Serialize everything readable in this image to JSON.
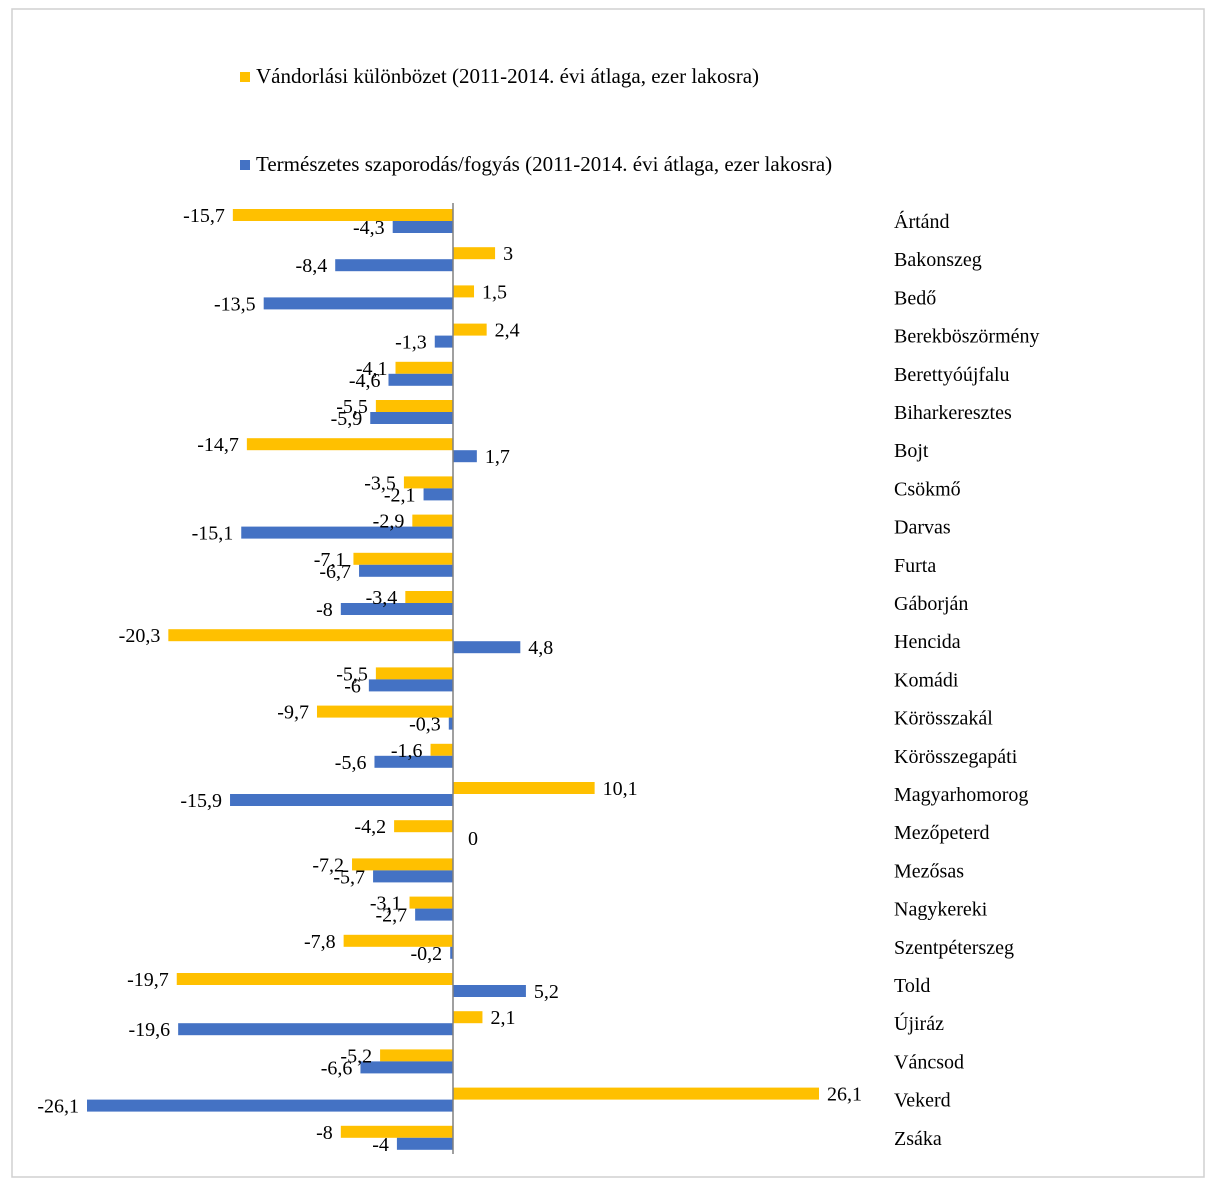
{
  "chart_data": {
    "type": "bar",
    "orientation": "horizontal",
    "title": "",
    "xlabel": "",
    "ylabel": "",
    "xlim": [
      -26.1,
      26.1
    ],
    "grid": false,
    "legend_position": "top",
    "categories": [
      "Ártánd",
      "Bakonszeg",
      "Bedő",
      "Berekböszörmény",
      "Berettyóújfalu",
      "Biharkeresztes",
      "Bojt",
      "Csökmő",
      "Darvas",
      "Furta",
      "Gáborján",
      "Hencida",
      "Komádi",
      "Körösszakál",
      "Körösszegapáti",
      "Magyarhomorog",
      "Mezőpeterd",
      "Mezősas",
      "Nagykereki",
      "Szentpéterszeg",
      "Told",
      "Újiráz",
      "Váncsod",
      "Vekerd",
      "Zsáka"
    ],
    "series": [
      {
        "name": "Vándorlási különbözet  (2011-2014. évi átlaga, ezer lakosra)",
        "color": "#FFC000",
        "values": [
          -15.7,
          3,
          1.5,
          2.4,
          -4.1,
          -5.5,
          -14.7,
          -3.5,
          -2.9,
          -7.1,
          -3.4,
          -20.3,
          -5.5,
          -9.7,
          -1.6,
          10.1,
          -4.2,
          -7.2,
          -3.1,
          -7.8,
          -19.7,
          2.1,
          -5.2,
          26.1,
          -8
        ],
        "labels": [
          "-15,7",
          "3",
          "1,5",
          "2,4",
          "-4,1",
          "-5,5",
          "-14,7",
          "-3,5",
          "-2,9",
          "-7,1",
          "-3,4",
          "-20,3",
          "-5,5",
          "-9,7",
          "-1,6",
          "10,1",
          "-4,2",
          "-7,2",
          "-3,1",
          "-7,8",
          "-19,7",
          "2,1",
          "-5,2",
          "26,1",
          "-8"
        ]
      },
      {
        "name": "Természetes szaporodás/fogyás (2011-2014. évi átlaga, ezer lakosra)",
        "color": "#4472C4",
        "values": [
          -4.3,
          -8.4,
          -13.5,
          -1.3,
          -4.6,
          -5.9,
          1.7,
          -2.1,
          -15.1,
          -6.7,
          -8,
          4.8,
          -6,
          -0.3,
          -5.6,
          -15.9,
          0,
          -5.7,
          -2.7,
          -0.2,
          5.2,
          -19.6,
          -6.6,
          -26.1,
          -4
        ],
        "labels": [
          "-4,3",
          "-8,4",
          "-13,5",
          "-1,3",
          "-4,6",
          "-5,9",
          "1,7",
          "-2,1",
          "-15,1",
          "-6,7",
          "-8",
          "4,8",
          "-6",
          "-0,3",
          "-5,6",
          "-15,9",
          "0",
          "-5,7",
          "-2,7",
          "-0,2",
          "5,2",
          "-19,6",
          "-6,6",
          "-26,1",
          "-4"
        ]
      }
    ]
  }
}
